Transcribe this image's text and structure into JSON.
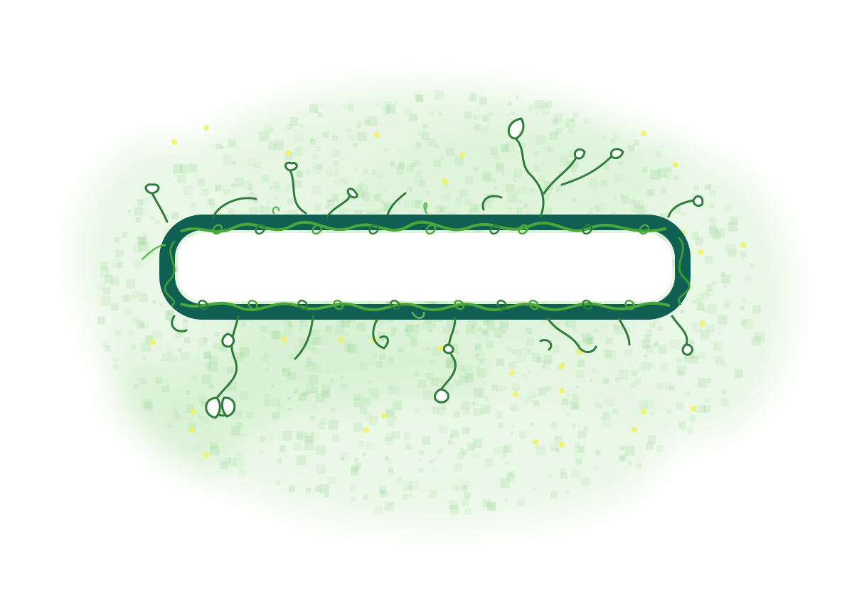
{
  "art": {
    "subject": "vine-wrapped-frame",
    "colors": {
      "frame": "#0f5f52",
      "vine_dark": "#2f7d3a",
      "vine_light": "#4aa83a",
      "mist": "#9ed99a",
      "sparkle": "#f3f25a",
      "inside": "#ffffff",
      "background": "#ffffff"
    }
  },
  "frame": {
    "text": ""
  }
}
